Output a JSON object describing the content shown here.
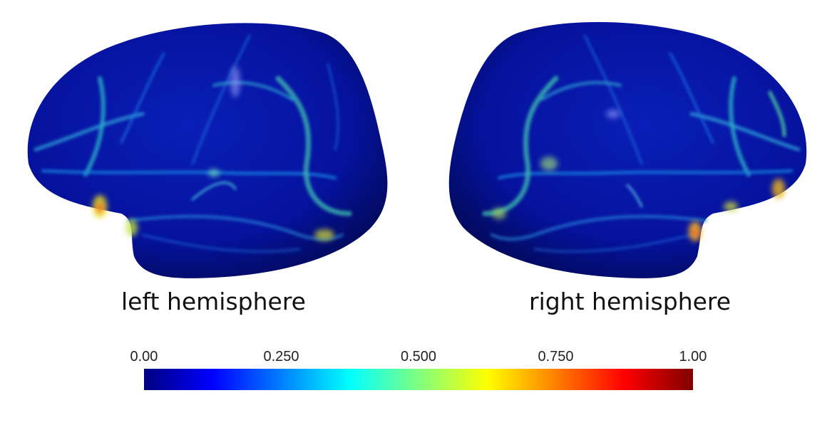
{
  "captions": {
    "left": "left hemisphere",
    "right": "right hemisphere"
  },
  "colorbar": {
    "ticks": [
      "0.00",
      "0.250",
      "0.500",
      "0.750",
      "1.00"
    ],
    "tick_values": [
      0.0,
      0.25,
      0.5,
      0.75,
      1.0
    ],
    "range": [
      0.0,
      1.0
    ],
    "colormap": "jet",
    "stops": [
      "#00007f",
      "#0000ff",
      "#007fff",
      "#00ffff",
      "#7fff7f",
      "#ffff00",
      "#ff7f00",
      "#ff0000",
      "#7f0000"
    ]
  },
  "colors": {
    "surface_base": "#04149a",
    "highlight": "#1f8fd0"
  }
}
